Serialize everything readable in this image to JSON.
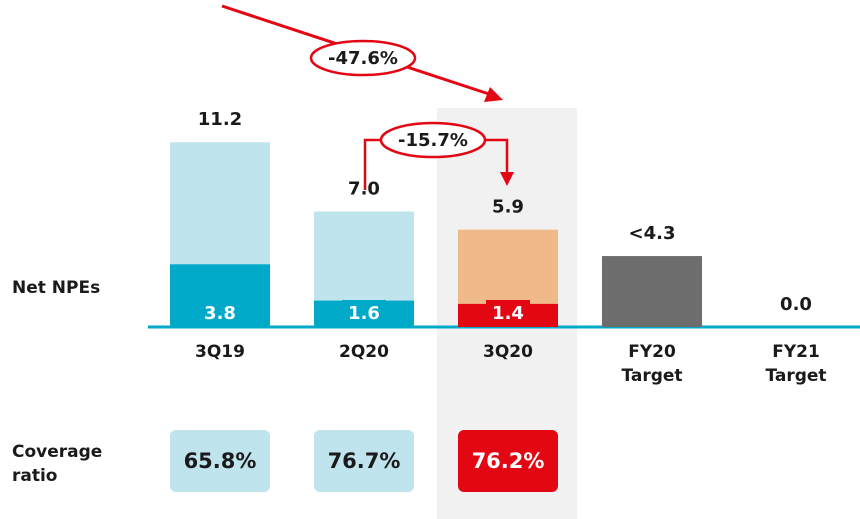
{
  "chart_data": {
    "type": "bar",
    "categories": [
      "3Q19",
      "2Q20",
      "3Q20",
      "FY20 Target",
      "FY21 Target"
    ],
    "series": [
      {
        "name": "Net NPEs",
        "values": [
          11.2,
          7.0,
          5.9,
          4.3,
          0.0
        ],
        "value_labels": [
          "11.2",
          "7.0",
          "5.9",
          "<4.3",
          "0.0"
        ],
        "colors": [
          "#bfe4ee",
          "#bfe4ee",
          "#f0b98a",
          "#6d6d6d",
          "#6d6d6d"
        ]
      }
    ],
    "segments": {
      "values": [
        3.8,
        1.6,
        1.4,
        null,
        null
      ],
      "colors": [
        "#00a9c8",
        "#00a9c8",
        "#e30613",
        null,
        null
      ]
    },
    "coverage": {
      "name": "Coverage ratio",
      "values": [
        65.8,
        76.7,
        76.2
      ],
      "value_labels": [
        "65.8%",
        "76.7%",
        "76.2%"
      ],
      "colors": [
        "#bfe4ee",
        "#bfe4ee",
        "#e30613"
      ]
    },
    "annotations": [
      "-47.6%",
      "-15.7%"
    ]
  }
}
